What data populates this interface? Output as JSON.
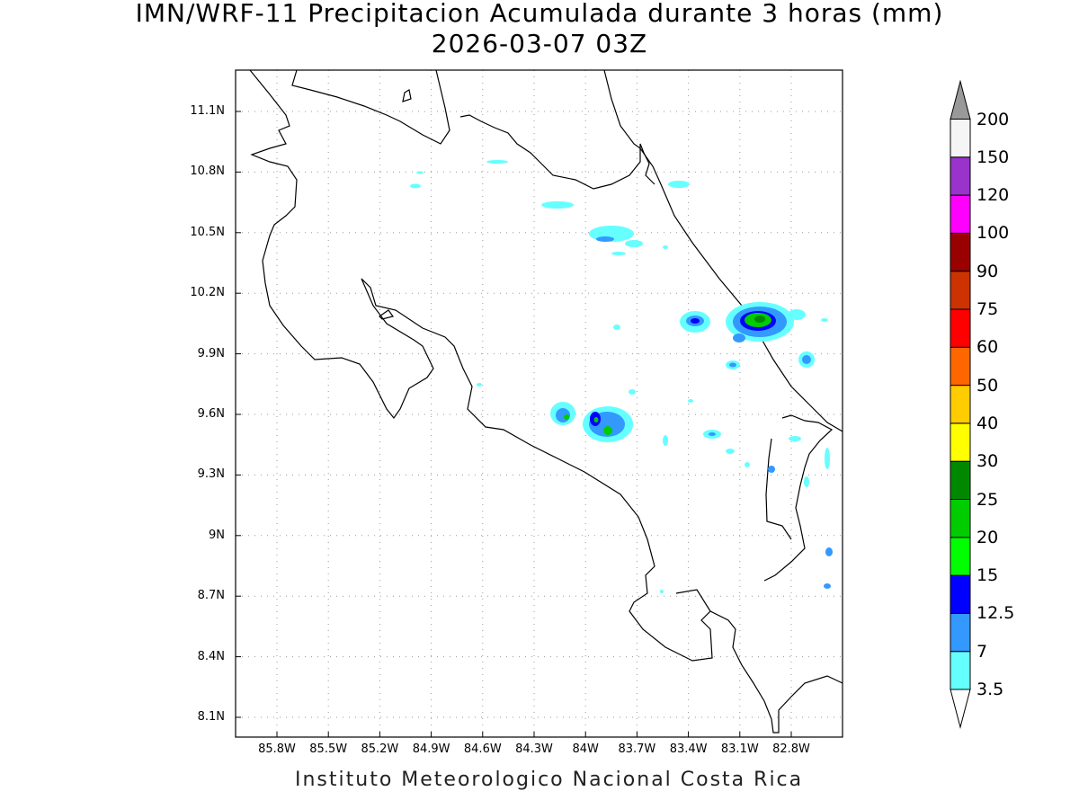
{
  "title": "IMN/WRF-11 Precipitacion Acumulada durante 3 horas (mm)",
  "subtitle": "2026-03-07 03Z",
  "footer": "Instituto Meteorologico Nacional Costa Rica",
  "lat_ticks": [
    "11.1N",
    "10.8N",
    "10.5N",
    "10.2N",
    "9.9N",
    "9.6N",
    "9.3N",
    "9N",
    "8.7N",
    "8.4N",
    "8.1N"
  ],
  "lon_ticks": [
    "85.8W",
    "85.5W",
    "85.2W",
    "84.9W",
    "84.6W",
    "84.3W",
    "84W",
    "83.7W",
    "83.4W",
    "83.1W",
    "82.8W"
  ],
  "colorbar": {
    "labels": [
      "3.5",
      "7",
      "12.5",
      "15",
      "20",
      "25",
      "30",
      "40",
      "50",
      "60",
      "75",
      "90",
      "100",
      "120",
      "150",
      "200"
    ],
    "colors": [
      "#66ffff",
      "#3399ff",
      "#0000ff",
      "#00ff00",
      "#00cc00",
      "#008800",
      "#ffff00",
      "#ffcc00",
      "#ff6600",
      "#ff0000",
      "#cc3300",
      "#990000",
      "#ff00ff",
      "#9933cc",
      "#f5f5f5"
    ],
    "overflow_color": "#999999"
  }
}
